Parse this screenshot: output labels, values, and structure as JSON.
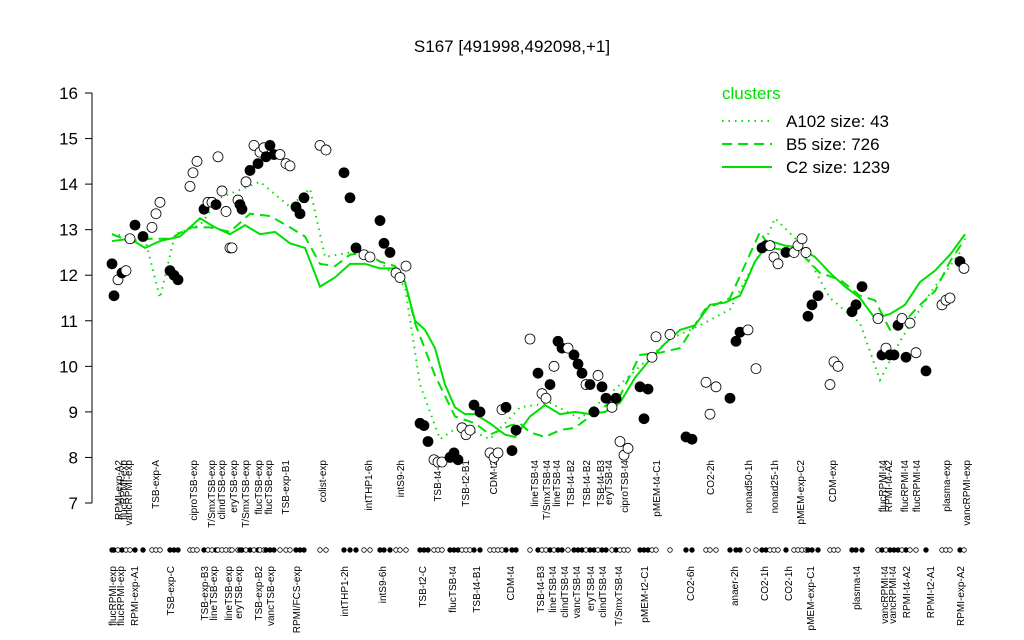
{
  "chart_data": {
    "type": "line",
    "title": "S167 [491998,492098,+1]",
    "ylim": [
      7,
      16
    ],
    "yticks": [
      7,
      8,
      9,
      10,
      11,
      12,
      13,
      14,
      15,
      16
    ],
    "xlim": [
      0,
      880
    ],
    "legend_title": "clusters",
    "legend_color": "#00e000",
    "series": [
      {
        "name": "A102 size: 43",
        "color": "#00e000",
        "dash": "dotted",
        "x": [
          12,
          45,
          60,
          75,
          100,
          120,
          160,
          190,
          210,
          225,
          250,
          280,
          305,
          320,
          340,
          360,
          390,
          420,
          450,
          480,
          510,
          540,
          570,
          600,
          630,
          660,
          675,
          700,
          730,
          760,
          780,
          800,
          830,
          860
        ],
        "values": [
          12.9,
          12.8,
          11.5,
          12.9,
          13.1,
          13.7,
          14.05,
          13.5,
          13.9,
          12.4,
          12.5,
          12.3,
          11.75,
          9.6,
          8.4,
          8.7,
          8.4,
          9.1,
          9.2,
          8.85,
          9.4,
          10.0,
          10.6,
          10.9,
          11.25,
          12.5,
          13.25,
          12.7,
          11.5,
          10.95,
          9.7,
          10.55,
          11.6,
          12.5
        ]
      },
      {
        "name": "B5 size: 726",
        "color": "#00e000",
        "dash": "dashed",
        "x": [
          12,
          30,
          50,
          70,
          90,
          110,
          130,
          150,
          170,
          190,
          205,
          220,
          235,
          250,
          265,
          280,
          295,
          305,
          315,
          335,
          355,
          375,
          390,
          410,
          420,
          430,
          445,
          460,
          475,
          490,
          520,
          540,
          560,
          580,
          605,
          630,
          660,
          670,
          700,
          720,
          740,
          760,
          775,
          790,
          805,
          820,
          835,
          850,
          865
        ],
        "values": [
          12.9,
          12.75,
          12.8,
          12.8,
          13.05,
          13.05,
          12.95,
          13.35,
          13.3,
          13.05,
          12.85,
          12.25,
          12.2,
          12.45,
          12.5,
          12.3,
          12.2,
          11.85,
          10.95,
          9.8,
          8.9,
          8.75,
          8.5,
          8.7,
          8.75,
          8.55,
          8.45,
          8.6,
          8.65,
          8.9,
          9.35,
          10.25,
          10.3,
          10.4,
          11.25,
          11.5,
          12.95,
          12.6,
          12.5,
          12.05,
          11.9,
          11.55,
          11.45,
          10.8,
          11.0,
          11.35,
          11.65,
          12.3,
          12.8
        ]
      },
      {
        "name": "C2 size: 1239",
        "color": "#00e000",
        "dash": "solid",
        "x": [
          12,
          30,
          45,
          60,
          80,
          90,
          100,
          115,
          130,
          145,
          160,
          175,
          190,
          205,
          220,
          235,
          250,
          265,
          280,
          295,
          305,
          315,
          325,
          335,
          345,
          355,
          365,
          375,
          390,
          405,
          415,
          430,
          445,
          460,
          475,
          490,
          505,
          520,
          535,
          550,
          565,
          580,
          595,
          610,
          625,
          640,
          655,
          670,
          685,
          700,
          715,
          730,
          745,
          760,
          775,
          790,
          805,
          820,
          835,
          850,
          865
        ],
        "values": [
          12.75,
          12.8,
          12.6,
          12.75,
          12.85,
          13.05,
          13.25,
          13.05,
          12.9,
          13.1,
          12.9,
          12.95,
          12.7,
          12.6,
          11.75,
          11.95,
          12.25,
          12.25,
          12.15,
          12.15,
          11.85,
          11.0,
          10.8,
          10.4,
          9.6,
          9.1,
          8.95,
          8.95,
          8.75,
          8.5,
          8.45,
          8.9,
          9.15,
          8.95,
          9.0,
          8.95,
          9.0,
          9.2,
          9.75,
          10.15,
          10.5,
          10.8,
          10.9,
          11.35,
          11.4,
          11.55,
          12.3,
          12.75,
          12.65,
          12.6,
          12.4,
          12.05,
          11.75,
          11.5,
          11.05,
          11.15,
          11.35,
          11.85,
          12.1,
          12.45,
          12.9
        ]
      }
    ],
    "points": {
      "x": [
        12,
        14,
        18,
        22,
        26,
        30,
        35,
        43,
        52,
        56,
        60,
        70,
        74,
        78,
        90,
        93,
        97,
        104,
        108,
        112,
        116,
        118,
        122,
        126,
        130,
        132,
        138,
        140,
        142,
        146,
        150,
        154,
        158,
        160,
        164,
        166,
        170,
        174,
        180,
        186,
        190,
        196,
        200,
        204,
        220,
        226,
        244,
        250,
        256,
        264,
        270,
        280,
        284,
        290,
        296,
        300,
        306,
        320,
        324,
        328,
        334,
        338,
        342,
        350,
        354,
        358,
        362,
        366,
        370,
        374,
        380,
        390,
        394,
        398,
        402,
        406,
        412,
        416,
        430,
        438,
        442,
        446,
        450,
        454,
        458,
        462,
        468,
        474,
        478,
        482,
        486,
        490,
        494,
        498,
        502,
        506,
        512,
        516,
        520,
        524,
        528,
        540,
        544,
        548,
        552,
        556,
        570,
        586,
        592,
        606,
        610,
        616,
        630,
        636,
        640,
        648,
        656,
        662,
        666,
        670,
        674,
        678,
        686,
        694,
        698,
        702,
        706,
        708,
        712,
        718,
        730,
        734,
        738,
        752,
        756,
        762,
        778,
        782,
        786,
        790,
        794,
        798,
        802,
        806,
        810,
        816,
        826,
        842,
        846,
        850,
        860,
        864
      ],
      "values": [
        12.25,
        11.55,
        11.9,
        12.05,
        12.1,
        12.8,
        13.1,
        12.85,
        13.05,
        13.35,
        13.6,
        12.1,
        12.0,
        11.9,
        13.95,
        14.25,
        14.5,
        13.45,
        13.6,
        13.6,
        13.55,
        14.6,
        13.85,
        13.4,
        12.6,
        12.6,
        13.65,
        13.55,
        13.45,
        14.05,
        14.3,
        14.85,
        14.45,
        14.7,
        14.8,
        14.6,
        14.85,
        14.65,
        14.65,
        14.45,
        14.4,
        13.5,
        13.35,
        13.7,
        14.85,
        14.75,
        14.25,
        13.7,
        12.6,
        12.45,
        12.4,
        13.2,
        12.7,
        12.5,
        12.05,
        11.95,
        12.2,
        8.75,
        8.7,
        8.35,
        7.95,
        7.9,
        7.9,
        8.0,
        8.1,
        7.95,
        8.65,
        8.5,
        8.6,
        9.15,
        9.0,
        8.1,
        8.0,
        8.1,
        9.05,
        9.1,
        8.15,
        8.6,
        10.6,
        9.85,
        9.4,
        9.3,
        9.6,
        10.0,
        10.55,
        10.4,
        10.4,
        10.25,
        10.05,
        9.85,
        9.6,
        9.6,
        9.0,
        9.8,
        9.55,
        9.3,
        9.1,
        9.3,
        8.35,
        8.05,
        8.2,
        9.55,
        8.85,
        9.5,
        10.2,
        10.65,
        10.7,
        8.45,
        8.4,
        9.65,
        8.95,
        9.55,
        9.3,
        10.55,
        10.75,
        10.8,
        9.95,
        12.6,
        12.65,
        12.65,
        12.4,
        12.25,
        12.5,
        12.5,
        12.65,
        12.8,
        12.5,
        11.1,
        11.35,
        11.55,
        9.6,
        10.1,
        10.0,
        11.2,
        11.35,
        11.75,
        11.05,
        10.25,
        10.4,
        10.25,
        10.25,
        10.9,
        11.05,
        10.2,
        10.95,
        10.3,
        9.9,
        11.35,
        11.45,
        11.5,
        12.3,
        12.15
      ],
      "fills": [
        "black",
        "black",
        "white",
        "black",
        "white",
        "white",
        "black",
        "black",
        "white",
        "white",
        "white",
        "black",
        "black",
        "black",
        "white",
        "white",
        "white",
        "black",
        "white",
        "white",
        "black",
        "white",
        "white",
        "white",
        "white",
        "white",
        "white",
        "black",
        "black",
        "white",
        "black",
        "white",
        "black",
        "white",
        "white",
        "black",
        "black",
        "black",
        "white",
        "white",
        "white",
        "black",
        "black",
        "black",
        "white",
        "white",
        "black",
        "black",
        "black",
        "white",
        "white",
        "black",
        "black",
        "black",
        "white",
        "white",
        "white",
        "black",
        "black",
        "black",
        "white",
        "white",
        "white",
        "black",
        "black",
        "black",
        "white",
        "white",
        "white",
        "black",
        "black",
        "white",
        "white",
        "white",
        "white",
        "black",
        "black",
        "black",
        "white",
        "black",
        "white",
        "white",
        "black",
        "white",
        "black",
        "black",
        "white",
        "black",
        "black",
        "black",
        "white",
        "black",
        "black",
        "white",
        "black",
        "black",
        "white",
        "black",
        "white",
        "white",
        "white",
        "black",
        "black",
        "black",
        "white",
        "white",
        "white",
        "black",
        "black",
        "white",
        "white",
        "white",
        "black",
        "black",
        "black",
        "white",
        "white",
        "black",
        "black",
        "white",
        "white",
        "white",
        "black",
        "white",
        "white",
        "white",
        "white",
        "black",
        "black",
        "black",
        "white",
        "white",
        "white",
        "black",
        "black",
        "black",
        "white",
        "black",
        "white",
        "black",
        "black",
        "black",
        "white",
        "black",
        "white",
        "white",
        "black",
        "white",
        "white",
        "white",
        "black",
        "white"
      ]
    },
    "xticks_top": [
      {
        "value": 18,
        "label": "RPMI-exp-A2"
      },
      {
        "value": 23,
        "label": "flucRPMI-exp"
      },
      {
        "value": 28,
        "label": "vancRPMI-exp"
      },
      {
        "value": 55,
        "label": "TSB-exp-A"
      },
      {
        "value": 93,
        "label": "ciproTSB-exp"
      },
      {
        "value": 111,
        "label": "T/SmxTSB-exp"
      },
      {
        "value": 121,
        "label": "clindTSB-exp"
      },
      {
        "value": 133,
        "label": "eryTSB-exp"
      },
      {
        "value": 145,
        "label": "T/SmxTSB-exp"
      },
      {
        "value": 158,
        "label": "flucTSB-exp"
      },
      {
        "value": 168,
        "label": "flucTSB-exp"
      },
      {
        "value": 185,
        "label": "TSB-exp-B1"
      },
      {
        "value": 222,
        "label": "colist-exp"
      },
      {
        "value": 268,
        "label": "intTHP1-6h"
      },
      {
        "value": 300,
        "label": "intS9-2h"
      },
      {
        "value": 337,
        "label": "TSB-t4-C"
      },
      {
        "value": 365,
        "label": "TSB-t2-B1"
      },
      {
        "value": 393,
        "label": "CDM-t2"
      },
      {
        "value": 434,
        "label": "lineTSB-t4"
      },
      {
        "value": 446,
        "label": "T/SmxTSB-t4"
      },
      {
        "value": 456,
        "label": "lineTSB-t4"
      },
      {
        "value": 470,
        "label": "TSB-t4-B2"
      },
      {
        "value": 486,
        "label": "TSB-t4-B2"
      },
      {
        "value": 500,
        "label": "TSB-t4-B3"
      },
      {
        "value": 508,
        "label": "eryTSB-t4"
      },
      {
        "value": 524,
        "label": "ciproTSB-t4"
      },
      {
        "value": 556,
        "label": "pMEM-t4-C1"
      },
      {
        "value": 610,
        "label": "CO2-2h"
      },
      {
        "value": 648,
        "label": "nonad50-1h"
      },
      {
        "value": 674,
        "label": "nonad25-1h"
      },
      {
        "value": 700,
        "label": "pMEM-exp-C2"
      },
      {
        "value": 732,
        "label": "CDM-exp"
      },
      {
        "value": 782,
        "label": "flucRPMI-t4"
      },
      {
        "value": 788,
        "label": "RPMI-t4-A2"
      },
      {
        "value": 804,
        "label": "flucRPMI-t4"
      },
      {
        "value": 816,
        "label": "flucRPMI-t4"
      },
      {
        "value": 846,
        "label": "plasma-exp"
      },
      {
        "value": 866,
        "label": "vancRPMI-exp"
      }
    ],
    "xticks_bottom": [
      {
        "value": 12,
        "label": "flucRPMI-exp"
      },
      {
        "value": 20,
        "label": "flucRPMI-exp"
      },
      {
        "value": 34,
        "label": "RPMI-exp-A1"
      },
      {
        "value": 70,
        "label": "TSB-exp-C"
      },
      {
        "value": 104,
        "label": "TSB-exp-B3"
      },
      {
        "value": 113,
        "label": "lineTSB-exp"
      },
      {
        "value": 128,
        "label": "lineTSB-exp"
      },
      {
        "value": 138,
        "label": "eryTSB-exp"
      },
      {
        "value": 158,
        "label": "TSB-exp-B2"
      },
      {
        "value": 170,
        "label": "vancTSB-exp"
      },
      {
        "value": 196,
        "label": "RPMI/FCS-exp"
      },
      {
        "value": 244,
        "label": "intTHP1-2h"
      },
      {
        "value": 282,
        "label": "intS9-6h"
      },
      {
        "value": 322,
        "label": "TSB-t2-C"
      },
      {
        "value": 352,
        "label": "flucTSB-t4"
      },
      {
        "value": 376,
        "label": "TSB-t4-B1"
      },
      {
        "value": 410,
        "label": "CDM-t4"
      },
      {
        "value": 440,
        "label": "TSB-t4-B3"
      },
      {
        "value": 452,
        "label": "lineTSB-t4"
      },
      {
        "value": 464,
        "label": "clindTSB-t4"
      },
      {
        "value": 476,
        "label": "vancTSB-t4"
      },
      {
        "value": 490,
        "label": "eryTSB-t4"
      },
      {
        "value": 502,
        "label": "clindTSB-t4"
      },
      {
        "value": 518,
        "label": "T/SmxTSB-t4"
      },
      {
        "value": 544,
        "label": "pMEM-t2-C1"
      },
      {
        "value": 590,
        "label": "CO2-6h"
      },
      {
        "value": 634,
        "label": "anaer-2h"
      },
      {
        "value": 664,
        "label": "CO2-1h"
      },
      {
        "value": 688,
        "label": "CO2-1h"
      },
      {
        "value": 710,
        "label": "pMEM-exp-C1"
      },
      {
        "value": 756,
        "label": "plasma-t4"
      },
      {
        "value": 784,
        "label": "vancRPMI-t4"
      },
      {
        "value": 792,
        "label": "vancRPMI-t4"
      },
      {
        "value": 806,
        "label": "RPMI-t4-A2"
      },
      {
        "value": 830,
        "label": "RPMI-t2-A1"
      },
      {
        "value": 860,
        "label": "RPMI-exp-A2"
      }
    ]
  }
}
